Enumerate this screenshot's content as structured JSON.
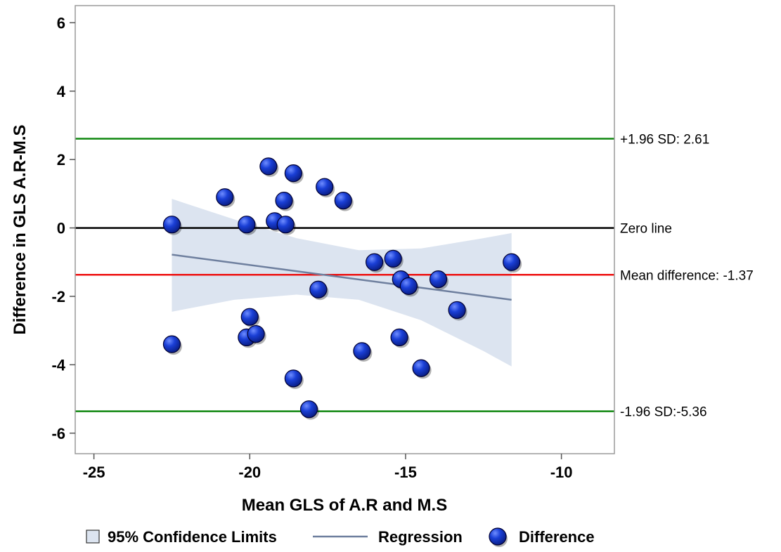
{
  "chart_data": {
    "type": "scatter",
    "xlabel": "Mean GLS of A.R and M.S",
    "ylabel": "Difference in GLS A.R-M.S",
    "xlim": [
      -25.6,
      -8.3
    ],
    "ylim": [
      -6.6,
      6.5
    ],
    "x_ticks": [
      -25,
      -20,
      -15,
      -10
    ],
    "y_ticks": [
      -6,
      -4,
      -2,
      0,
      2,
      4,
      6
    ],
    "grid": false,
    "legend_position": "bottom",
    "colors": {
      "points": "#1133cc",
      "point_edge": "#000033",
      "regression": "#6e7f9e",
      "confidence_band": "#dce4f0",
      "upper_limit": "#118811",
      "lower_limit": "#118811",
      "mean_line": "#ee1111",
      "zero_line": "#000000"
    },
    "reference_lines": [
      {
        "y": 2.61,
        "label": "+1.96 SD: 2.61",
        "color": "#118811"
      },
      {
        "y": 0,
        "label": "Zero line",
        "color": "#000000"
      },
      {
        "y": -1.37,
        "label": "Mean difference: -1.37",
        "color": "#ee1111"
      },
      {
        "y": -5.36,
        "label": "-1.96 SD:-5.36",
        "color": "#118811"
      }
    ],
    "regression": {
      "x": [
        -22.5,
        -11.6
      ],
      "y": [
        -0.78,
        -2.1
      ]
    },
    "confidence_band": {
      "x": [
        -22.5,
        -20.5,
        -18.5,
        -16.5,
        -14.5,
        -12.5,
        -11.6
      ],
      "upper": [
        0.85,
        0.25,
        -0.3,
        -0.65,
        -0.6,
        -0.3,
        -0.15
      ],
      "lower": [
        -2.45,
        -2.1,
        -1.95,
        -2.1,
        -2.7,
        -3.6,
        -4.05
      ]
    },
    "series": [
      {
        "name": "Difference",
        "x": [
          -22.5,
          -20.8,
          -20.1,
          -19.4,
          -19.2,
          -18.9,
          -18.85,
          -18.6,
          -17.6,
          -17.0,
          -22.5,
          -20.0,
          -20.1,
          -19.8,
          -18.6,
          -18.1,
          -17.8,
          -16.4,
          -16.0,
          -15.4,
          -15.15,
          -14.9,
          -15.2,
          -14.5,
          -13.95,
          -13.35,
          -11.6
        ],
        "y": [
          0.1,
          0.9,
          0.1,
          1.8,
          0.2,
          0.8,
          0.1,
          1.6,
          1.2,
          0.8,
          -3.4,
          -2.6,
          -3.2,
          -3.1,
          -4.4,
          -5.3,
          -1.8,
          -3.6,
          -1.0,
          -0.9,
          -1.5,
          -1.7,
          -3.2,
          -4.1,
          -1.5,
          -2.4,
          -1.0
        ]
      }
    ],
    "legend": [
      {
        "label": "95% Confidence Limits",
        "kind": "band"
      },
      {
        "label": "Regression",
        "kind": "line"
      },
      {
        "label": "Difference",
        "kind": "marker"
      }
    ]
  }
}
